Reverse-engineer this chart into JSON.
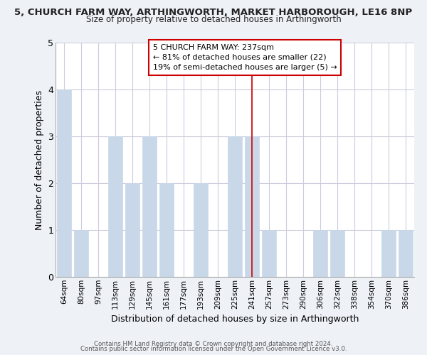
{
  "title": "5, CHURCH FARM WAY, ARTHINGWORTH, MARKET HARBOROUGH, LE16 8NP",
  "subtitle": "Size of property relative to detached houses in Arthingworth",
  "xlabel": "Distribution of detached houses by size in Arthingworth",
  "ylabel": "Number of detached properties",
  "categories": [
    "64sqm",
    "80sqm",
    "97sqm",
    "113sqm",
    "129sqm",
    "145sqm",
    "161sqm",
    "177sqm",
    "193sqm",
    "209sqm",
    "225sqm",
    "241sqm",
    "257sqm",
    "273sqm",
    "290sqm",
    "306sqm",
    "322sqm",
    "338sqm",
    "354sqm",
    "370sqm",
    "386sqm"
  ],
  "values": [
    4,
    1,
    0,
    3,
    2,
    3,
    2,
    0,
    2,
    0,
    3,
    3,
    1,
    0,
    0,
    1,
    1,
    0,
    0,
    1,
    1
  ],
  "bar_color": "#c8d8e8",
  "vline_x": 11,
  "vline_color": "#cc0000",
  "annotation_title": "5 CHURCH FARM WAY: 237sqm",
  "annotation_line1": "← 81% of detached houses are smaller (22)",
  "annotation_line2": "19% of semi-detached houses are larger (5) →",
  "annotation_box_color": "#ffffff",
  "annotation_box_edge": "#cc0000",
  "ylim": [
    0,
    5
  ],
  "yticks": [
    0,
    1,
    2,
    3,
    4,
    5
  ],
  "footnote1": "Contains HM Land Registry data © Crown copyright and database right 2024.",
  "footnote2": "Contains public sector information licensed under the Open Government Licence v3.0.",
  "bg_color": "#eef2f7",
  "plot_bg_color": "#ffffff",
  "grid_color": "#ccccdd"
}
